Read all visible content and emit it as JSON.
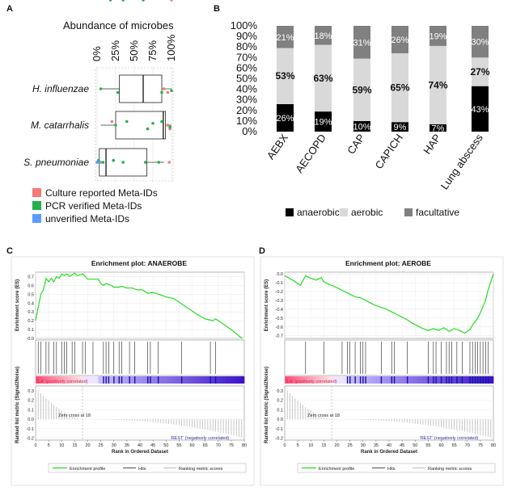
{
  "panels": {
    "A": "A",
    "B": "B",
    "C": "C",
    "D": "D"
  },
  "chart_data": [
    {
      "id": "A",
      "type": "scatter",
      "title": "Abundance of microbes",
      "x_ticks": [
        "0%",
        "25%",
        "50%",
        "75%",
        "100%"
      ],
      "x_tick_values": [
        0,
        25,
        50,
        75,
        100
      ],
      "xlim": [
        0,
        100
      ],
      "categories": [
        "H. influenzae",
        "M. catarrhalis",
        "S. pneumoniae"
      ],
      "boxes": [
        {
          "q1": 30,
          "median": 62,
          "q3": 87,
          "whisker_low": 5,
          "whisker_high": 100
        },
        {
          "q1": 25,
          "median": 89,
          "q3": 92,
          "whisker_low": 5,
          "whisker_high": 100
        },
        {
          "q1": 3,
          "median": 12,
          "q3": 67,
          "whisker_low": 0,
          "whisker_high": 90
        }
      ],
      "series": [
        {
          "name": "Culture reported Meta-IDs",
          "color": "#f47a7a",
          "points": [
            [
              90,
              0
            ],
            [
              95,
              0.1
            ],
            [
              100,
              -0.05
            ],
            [
              20,
              0.9
            ],
            [
              95,
              1
            ],
            [
              98,
              1.1
            ],
            [
              5,
              2
            ],
            [
              97,
              2.1
            ]
          ]
        },
        {
          "name": "PCR verified Meta-IDs",
          "color": "#22b14c",
          "points": [
            [
              5,
              0
            ],
            [
              18,
              -0.05
            ],
            [
              28,
              0.1
            ],
            [
              35,
              -0.1
            ],
            [
              62,
              -0.05
            ],
            [
              87,
              0.1
            ],
            [
              100,
              0.05
            ],
            [
              25,
              1
            ],
            [
              40,
              0.9
            ],
            [
              68,
              1.1
            ],
            [
              75,
              0.95
            ],
            [
              87,
              0.9
            ],
            [
              98,
              1.05
            ],
            [
              2,
              1.95
            ],
            [
              8,
              2.05
            ],
            [
              22,
              1.95
            ],
            [
              35,
              2.1
            ],
            [
              65,
              2.0
            ],
            [
              83,
              2.1
            ]
          ]
        },
        {
          "name": "unverified Meta-IDs",
          "color": "#5b9bff",
          "points": [
            [
              0,
              2
            ],
            [
              3,
              2.05
            ]
          ]
        }
      ]
    },
    {
      "id": "B",
      "type": "bar",
      "categories": [
        "AEBX",
        "AECOPD",
        "CAP",
        "CAPICH",
        "HAP",
        "Lung abscess"
      ],
      "y_ticks": [
        "0%",
        "10%",
        "20%",
        "30%",
        "40%",
        "50%",
        "60%",
        "70%",
        "80%",
        "90%",
        "100%"
      ],
      "ylim": [
        0,
        100
      ],
      "series": [
        {
          "name": "anaerobic",
          "color": "#000000",
          "values": [
            26,
            19,
            10,
            9,
            7,
            43
          ],
          "labels": [
            "26%",
            "19%",
            "10%",
            "9%",
            "7%",
            "43%"
          ]
        },
        {
          "name": "aerobic",
          "color": "#d9d9d9",
          "values": [
            53,
            63,
            59,
            65,
            74,
            27
          ],
          "labels": [
            "53%",
            "63%",
            "59%",
            "65%",
            "74%",
            "27%"
          ]
        },
        {
          "name": "facultative",
          "color": "#808080",
          "values": [
            21,
            18,
            31,
            26,
            19,
            30
          ],
          "labels": [
            "21%",
            "18%",
            "31%",
            "26%",
            "19%",
            "30%"
          ]
        }
      ]
    },
    {
      "id": "C",
      "type": "line",
      "title": "Enrichment plot: ANAEROBE",
      "ylabel": "Enrichment score (ES)",
      "ylabel2": "Ranked list metric (Signal2Noise)",
      "xlabel": "Rank in Ordered Dataset",
      "es_y_ticks": [
        "0.0",
        "0.1",
        "0.2",
        "0.3",
        "0.4",
        "0.5",
        "0.6",
        "0.7"
      ],
      "es_ylim": [
        0,
        0.75
      ],
      "x_ticks": [
        "0",
        "5",
        "10",
        "15",
        "20",
        "25",
        "30",
        "35",
        "40",
        "45",
        "50",
        "55",
        "60",
        "65",
        "70",
        "75",
        "80"
      ],
      "xlim": [
        0,
        80
      ],
      "metric_y_ticks": [
        "0.3",
        "0.2",
        "0.1",
        "0.0",
        "-0.1",
        "-0.2"
      ],
      "metric_ylim": [
        -0.22,
        0.35
      ],
      "es_curve": [
        [
          0,
          0.2
        ],
        [
          1,
          0.35
        ],
        [
          2,
          0.5
        ],
        [
          3,
          0.55
        ],
        [
          4,
          0.68
        ],
        [
          5,
          0.64
        ],
        [
          6,
          0.68
        ],
        [
          7,
          0.64
        ],
        [
          8,
          0.7
        ],
        [
          9,
          0.68
        ],
        [
          10,
          0.73
        ],
        [
          11,
          0.71
        ],
        [
          12,
          0.73
        ],
        [
          13,
          0.7
        ],
        [
          14,
          0.72
        ],
        [
          15,
          0.74
        ],
        [
          16,
          0.71
        ],
        [
          17,
          0.72
        ],
        [
          18,
          0.73
        ],
        [
          19,
          0.7
        ],
        [
          20,
          0.67
        ],
        [
          22,
          0.67
        ],
        [
          24,
          0.67
        ],
        [
          25,
          0.62
        ],
        [
          26,
          0.6
        ],
        [
          27,
          0.62
        ],
        [
          28,
          0.61
        ],
        [
          29,
          0.6
        ],
        [
          30,
          0.58
        ],
        [
          32,
          0.58
        ],
        [
          33,
          0.59
        ],
        [
          35,
          0.57
        ],
        [
          37,
          0.57
        ],
        [
          39,
          0.55
        ],
        [
          41,
          0.55
        ],
        [
          43,
          0.51
        ],
        [
          45,
          0.52
        ],
        [
          47,
          0.5
        ],
        [
          50,
          0.47
        ],
        [
          53,
          0.45
        ],
        [
          56,
          0.39
        ],
        [
          59,
          0.33
        ],
        [
          62,
          0.27
        ],
        [
          65,
          0.22
        ],
        [
          68,
          0.2
        ],
        [
          69,
          0.22
        ],
        [
          71,
          0.18
        ],
        [
          73,
          0.14
        ],
        [
          75,
          0.1
        ],
        [
          77,
          0.05
        ],
        [
          79,
          0.0
        ]
      ],
      "hits": [
        1,
        2,
        4,
        5,
        7,
        8,
        10,
        11,
        12,
        14,
        15,
        18,
        19,
        22,
        26,
        27,
        28,
        30,
        32,
        33,
        36,
        38,
        43,
        44,
        47,
        56,
        67,
        69
      ],
      "metric_max": 0.33,
      "metric_min": -0.2,
      "zero_cross": "Zero cross at 18",
      "zero_cross_rank": 18,
      "pos_label": "'LA' (positively correlated)",
      "neg_label": "'REST' (negatively correlated)",
      "legend": [
        "Enrichment profile",
        "Hits",
        "Ranking metric scores"
      ]
    },
    {
      "id": "D",
      "type": "line",
      "title": "Enrichment plot: AEROBE",
      "ylabel": "Enrichment score (ES)",
      "ylabel2": "Ranked list metric (Signal2Noise)",
      "xlabel": "Rank in Ordered Dataset",
      "es_y_ticks": [
        "0.0",
        "-0.1",
        "-0.2",
        "-0.3",
        "-0.4",
        "-0.5",
        "-0.6",
        "-0.7"
      ],
      "es_ylim": [
        -0.73,
        0.02
      ],
      "x_ticks": [
        "0",
        "5",
        "10",
        "15",
        "20",
        "25",
        "30",
        "35",
        "40",
        "45",
        "50",
        "55",
        "60",
        "65",
        "70",
        "75",
        "80"
      ],
      "xlim": [
        0,
        80
      ],
      "metric_y_ticks": [
        "0.3",
        "0.2",
        "0.1",
        "0.0",
        "-0.1",
        "-0.2"
      ],
      "metric_ylim": [
        -0.22,
        0.35
      ],
      "es_curve": [
        [
          0,
          -0.02
        ],
        [
          3,
          -0.07
        ],
        [
          6,
          -0.13
        ],
        [
          8,
          -0.02
        ],
        [
          10,
          -0.05
        ],
        [
          12,
          -0.07
        ],
        [
          14,
          -0.04
        ],
        [
          15,
          -0.09
        ],
        [
          17,
          -0.12
        ],
        [
          19,
          -0.14
        ],
        [
          21,
          -0.17
        ],
        [
          23,
          -0.2
        ],
        [
          25,
          -0.23
        ],
        [
          27,
          -0.26
        ],
        [
          29,
          -0.27
        ],
        [
          31,
          -0.3
        ],
        [
          33,
          -0.33
        ],
        [
          35,
          -0.36
        ],
        [
          37,
          -0.38
        ],
        [
          39,
          -0.4
        ],
        [
          41,
          -0.43
        ],
        [
          43,
          -0.46
        ],
        [
          45,
          -0.49
        ],
        [
          47,
          -0.52
        ],
        [
          49,
          -0.56
        ],
        [
          51,
          -0.59
        ],
        [
          53,
          -0.62
        ],
        [
          55,
          -0.64
        ],
        [
          57,
          -0.62
        ],
        [
          59,
          -0.64
        ],
        [
          61,
          -0.61
        ],
        [
          63,
          -0.65
        ],
        [
          65,
          -0.62
        ],
        [
          67,
          -0.64
        ],
        [
          69,
          -0.67
        ],
        [
          71,
          -0.63
        ],
        [
          72,
          -0.58
        ],
        [
          74,
          -0.5
        ],
        [
          75,
          -0.44
        ],
        [
          77,
          -0.3
        ],
        [
          78,
          -0.18
        ],
        [
          80,
          0.0
        ]
      ],
      "hits": [
        8,
        15,
        22,
        24,
        25,
        27,
        29,
        30,
        31,
        37,
        41,
        42,
        47,
        55,
        57,
        58,
        60,
        62,
        63,
        64,
        66,
        68,
        71,
        72,
        73,
        74,
        75,
        76,
        77,
        78
      ],
      "metric_max": 0.33,
      "metric_min": -0.2,
      "zero_cross": "Zero cross at 18",
      "zero_cross_rank": 18,
      "pos_label": "'LA' (positively correlated)",
      "neg_label": "'REST' (negatively correlated)",
      "legend": [
        "Enrichment profile",
        "Hits",
        "Ranking metric scores"
      ]
    }
  ]
}
